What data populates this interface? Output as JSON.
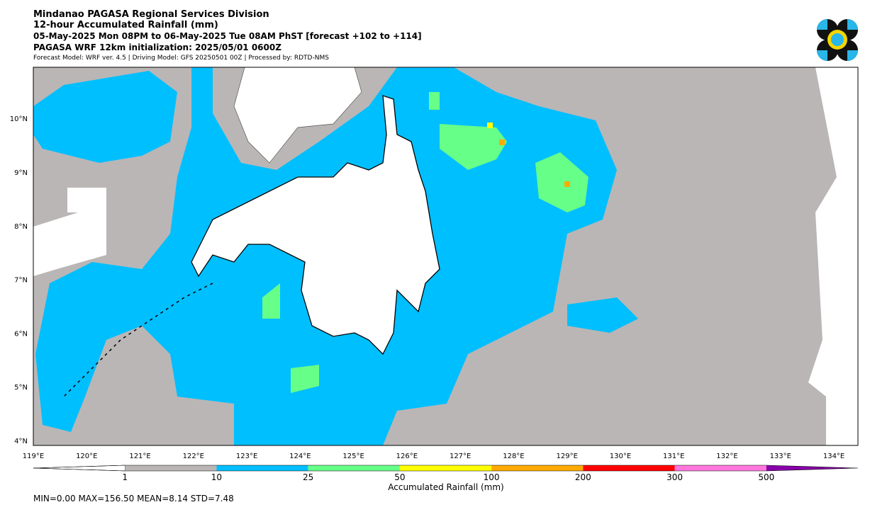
{
  "header": {
    "title": "Mindanao PAGASA Regional Services Division",
    "subtitle": "12-hour Accumulated Rainfall (mm)",
    "period": "05-May-2025 Mon 08PM to 06-May-2025 Tue 08AM PhST [forecast +102 to +114]",
    "initialization": "PAGASA WRF 12km initialization: 2025/05/01 0600Z",
    "model_info": "Forecast Model: WRF ver. 4.5 | Driving Model: GFS 20250501 00Z | Processed by: RDTD-NMS"
  },
  "map": {
    "lat_labels": [
      "4°N",
      "5°N",
      "6°N",
      "7°N",
      "8°N",
      "9°N",
      "10°N"
    ],
    "lon_labels": [
      "119°E",
      "120°E",
      "121°E",
      "122°E",
      "123°E",
      "124°E",
      "125°E",
      "126°E",
      "127°E",
      "128°E",
      "129°E",
      "130°E",
      "131°E",
      "132°E",
      "133°E",
      "134°E"
    ]
  },
  "colorbar": {
    "label": "Accumulated Rainfall (mm)",
    "ticks": [
      "1",
      "10",
      "25",
      "50",
      "100",
      "200",
      "300",
      "500"
    ],
    "colors": [
      "#ffffff",
      "#bab6b6",
      "#00bfff",
      "#66ff88",
      "#ffff00",
      "#ffaa00",
      "#ff0000",
      "#ff77dd",
      "#8800aa"
    ]
  },
  "stats": "MIN=0.00   MAX=156.50   MEAN=8.14   STD=7.48"
}
